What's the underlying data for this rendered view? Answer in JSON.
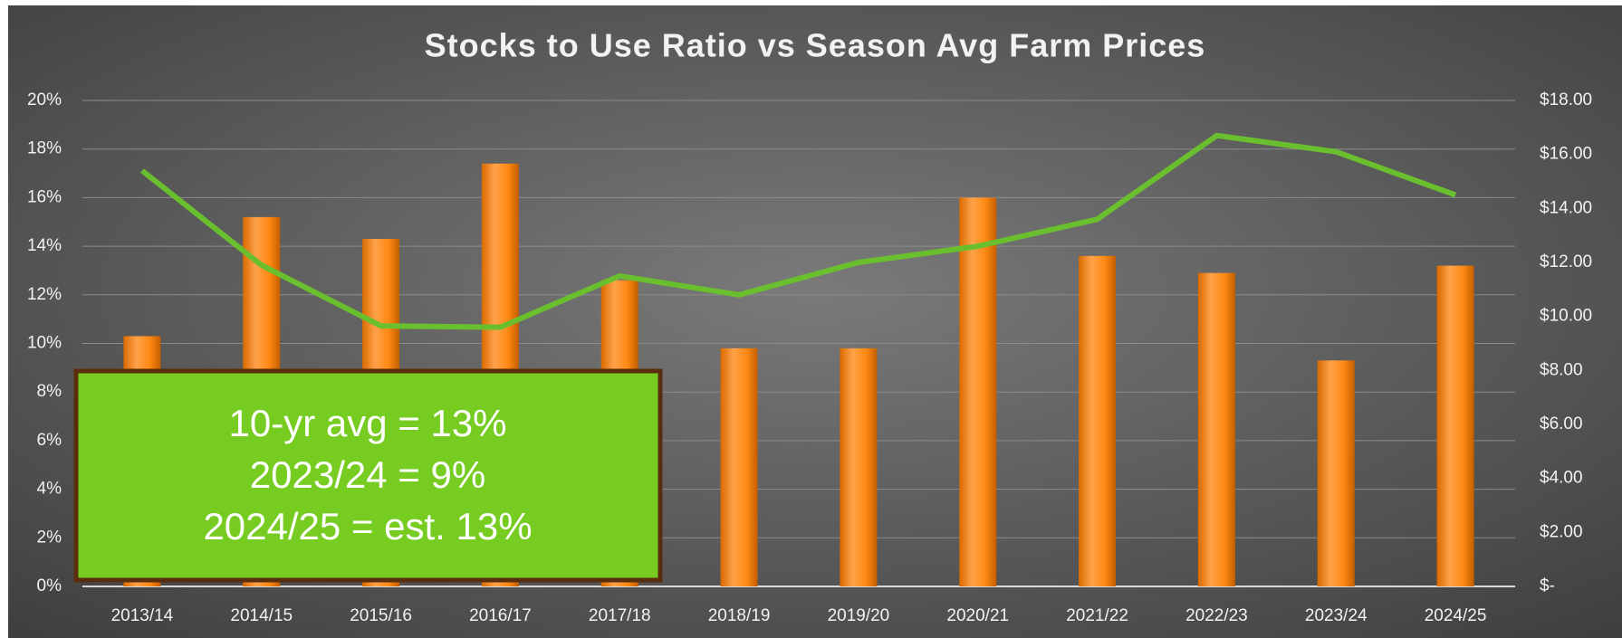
{
  "chart_data": {
    "type": "combo",
    "title": "Stocks to Use Ratio vs Season Avg Farm Prices",
    "categories": [
      "2013/14",
      "2014/15",
      "2015/16",
      "2016/17",
      "2017/18",
      "2018/19",
      "2019/20",
      "2020/21",
      "2021/22",
      "2022/23",
      "2023/24",
      "2024/25"
    ],
    "series": [
      {
        "type": "bar",
        "color": "#ff8a14",
        "values": [
          10.3,
          15.2,
          14.3,
          17.4,
          12.6,
          9.8,
          9.8,
          16.0,
          13.6,
          12.9,
          9.3,
          13.2
        ]
      },
      {
        "type": "line",
        "axis": "y2",
        "color": "#6abf2e",
        "values": [
          15.4,
          11.9,
          9.65,
          9.6,
          11.5,
          10.8,
          12.0,
          12.6,
          13.6,
          16.7,
          16.1,
          14.5
        ]
      }
    ],
    "ylim": [
      0,
      20
    ],
    "yticks": [
      {
        "value": 0,
        "label": "0%"
      },
      {
        "value": 2,
        "label": "2%"
      },
      {
        "value": 4,
        "label": "4%"
      },
      {
        "value": 6,
        "label": "6%"
      },
      {
        "value": 8,
        "label": "8%"
      },
      {
        "value": 10,
        "label": "10%"
      },
      {
        "value": 12,
        "label": "12%"
      },
      {
        "value": 14,
        "label": "14%"
      },
      {
        "value": 16,
        "label": "16%"
      },
      {
        "value": 18,
        "label": "18%"
      },
      {
        "value": 20,
        "label": "20%"
      }
    ],
    "y2lim": [
      0,
      18
    ],
    "y2ticks": [
      {
        "value": 0,
        "label": "$-"
      },
      {
        "value": 2,
        "label": "$2.00"
      },
      {
        "value": 4,
        "label": "$4.00"
      },
      {
        "value": 6,
        "label": "$6.00"
      },
      {
        "value": 8,
        "label": "$8.00"
      },
      {
        "value": 10,
        "label": "$10.00"
      },
      {
        "value": 12,
        "label": "$12.00"
      },
      {
        "value": 14,
        "label": "$14.00"
      },
      {
        "value": 16,
        "label": "$16.00"
      },
      {
        "value": 18,
        "label": "$18.00"
      }
    ],
    "grid": true,
    "annotations": [
      "10-yr avg = 13%",
      "2023/24 = 9%",
      "2024/25 = est. 13%"
    ]
  }
}
